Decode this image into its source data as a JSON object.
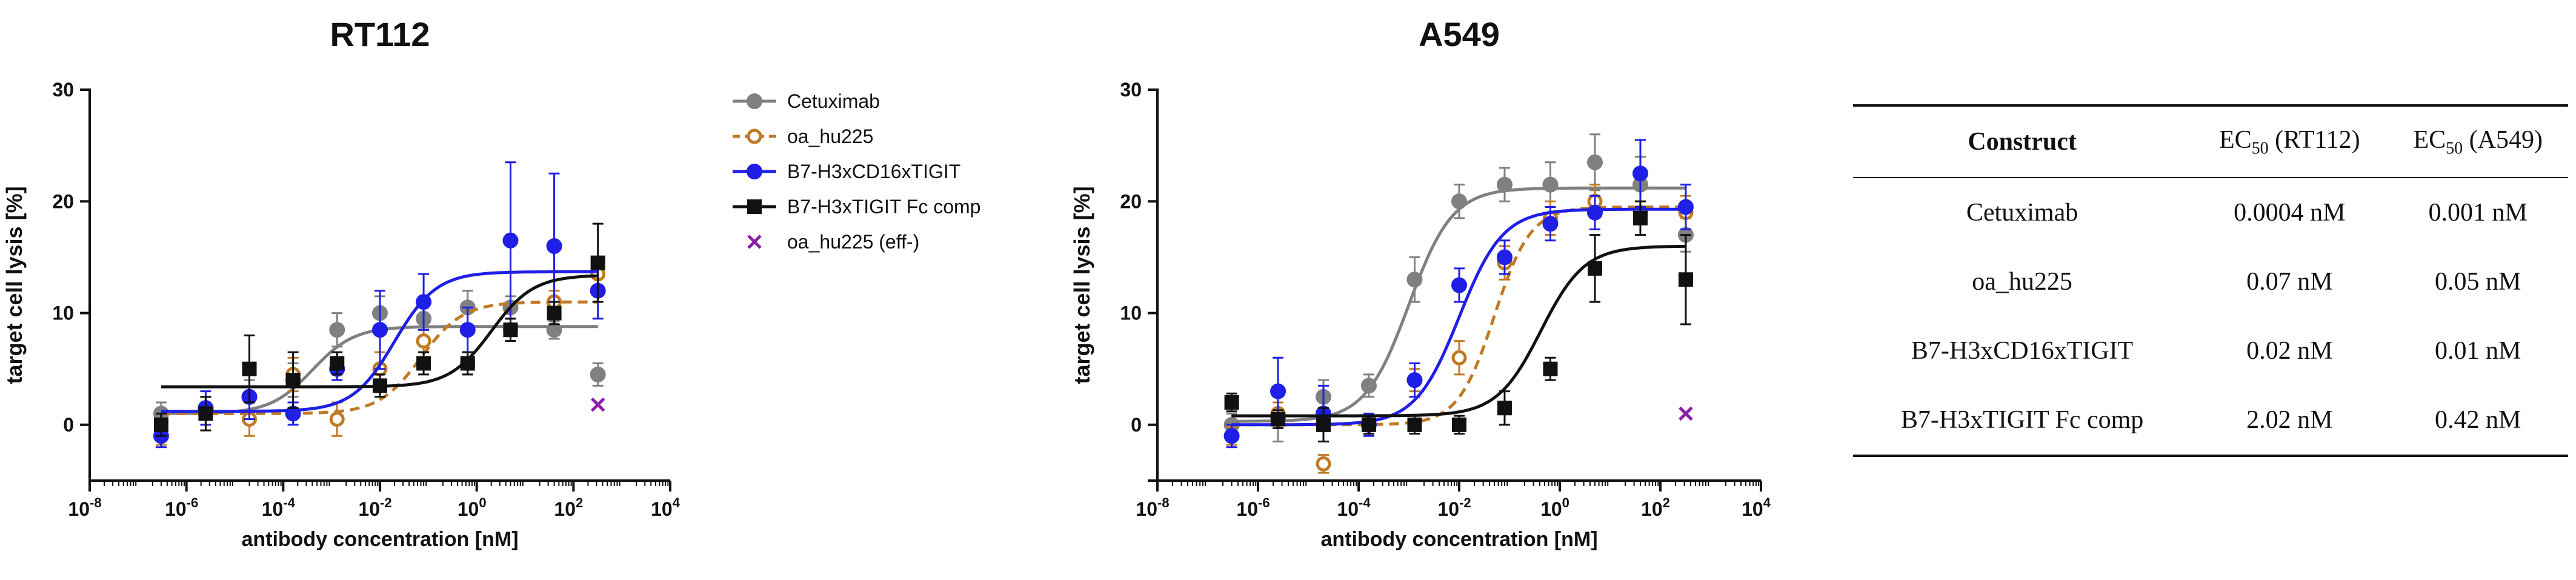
{
  "series_styles": [
    {
      "key": "cetuximab",
      "name": "Cetuximab",
      "color": "#808080",
      "marker": "circle",
      "fill": true,
      "dashed": false
    },
    {
      "key": "oa_hu225",
      "name": "oa_hu225",
      "color": "#c07a24",
      "marker": "circle",
      "fill": false,
      "dashed": true
    },
    {
      "key": "b7h3cd16",
      "name": "B7-H3xCD16xTIGIT",
      "color": "#1f1fe6",
      "marker": "circle",
      "fill": true,
      "dashed": false
    },
    {
      "key": "b7h3tigit",
      "name": "B7-H3xTIGIT Fc comp",
      "color": "#111111",
      "marker": "square",
      "fill": true,
      "dashed": false
    },
    {
      "key": "oa_eff",
      "name": "oa_hu225 (eff-)",
      "color": "#8b1fa8",
      "marker": "cross",
      "fill": false,
      "dashed": false
    }
  ],
  "chart_data": [
    {
      "type": "scatter",
      "title": "RT112",
      "xlabel": "antibody concentration [nM]",
      "ylabel": "target cell lysis [%]",
      "xscale": "log",
      "xlim": [
        1e-08,
        10000
      ],
      "ylim": [
        -5,
        30
      ],
      "xticks": [
        1e-08,
        1e-06,
        0.0001,
        0.01,
        1,
        100,
        10000
      ],
      "xtick_labels": [
        [
          "10",
          "-8"
        ],
        [
          "10",
          "-6"
        ],
        [
          "10",
          "-4"
        ],
        [
          "10",
          "-2"
        ],
        [
          "10",
          "0"
        ],
        [
          "10",
          "2"
        ],
        [
          "10",
          "4"
        ]
      ],
      "yticks": [
        0,
        10,
        20,
        30
      ],
      "ytick_labels": [
        "0",
        "10",
        "20",
        "30"
      ],
      "legend": "right",
      "x": [
        3e-07,
        2.5e-06,
        2e-05,
        0.00016,
        0.0013,
        0.01,
        0.08,
        0.65,
        5,
        40,
        320
      ],
      "series": [
        {
          "name": "Cetuximab",
          "y": [
            1.0,
            1.5,
            2.5,
            4.0,
            8.5,
            10.0,
            9.5,
            10.5,
            10.5,
            8.5,
            4.5
          ],
          "err": [
            1.0,
            1.0,
            1.5,
            1.5,
            1.5,
            1.5,
            1.0,
            1.5,
            1.0,
            0.8,
            1.0
          ],
          "fit": {
            "bottom": 1.0,
            "top": 8.8,
            "ec50": 0.0004,
            "hill": 1.0
          }
        },
        {
          "name": "oa_hu225",
          "y": [
            -1.0,
            1.0,
            0.5,
            4.5,
            0.5,
            5.0,
            7.5,
            5.5,
            8.5,
            11.0,
            13.5
          ],
          "err": [
            0.8,
            1.5,
            1.5,
            1.5,
            1.5,
            1.5,
            1.0,
            1.0,
            1.0,
            1.0,
            1.5
          ],
          "fit": {
            "bottom": 1.0,
            "top": 11.0,
            "ec50": 0.07,
            "hill": 1.0
          }
        },
        {
          "name": "B7-H3xCD16xTIGIT",
          "y": [
            -1.0,
            1.5,
            2.5,
            1.0,
            5.0,
            8.5,
            11.0,
            8.5,
            16.5,
            16.0,
            12.0
          ],
          "err": [
            1.0,
            1.5,
            2.0,
            1.0,
            1.0,
            3.5,
            2.5,
            2.0,
            7.0,
            6.5,
            2.5
          ],
          "fit": {
            "bottom": 1.2,
            "top": 13.7,
            "ec50": 0.02,
            "hill": 1.0
          }
        },
        {
          "name": "B7-H3xTIGIT Fc comp",
          "y": [
            0.0,
            1.0,
            5.0,
            4.0,
            5.5,
            3.5,
            5.5,
            5.5,
            8.5,
            10.0,
            14.5
          ],
          "err": [
            1.0,
            1.5,
            3.0,
            2.5,
            1.0,
            1.0,
            1.0,
            1.0,
            1.0,
            1.0,
            3.5
          ],
          "fit": {
            "bottom": 3.4,
            "top": 13.4,
            "ec50": 2.02,
            "hill": 1.0
          }
        },
        {
          "name": "oa_hu225 (eff-)",
          "points": [
            {
              "x": 320,
              "y": 1.8
            }
          ]
        }
      ]
    },
    {
      "type": "scatter",
      "title": "A549",
      "xlabel": "antibody concentration [nM]",
      "ylabel": "target cell lysis [%]",
      "xscale": "log",
      "xlim": [
        1e-08,
        10000
      ],
      "ylim": [
        -5,
        30
      ],
      "xticks": [
        1e-08,
        1e-06,
        0.0001,
        0.01,
        1,
        100,
        10000
      ],
      "xtick_labels": [
        [
          "10",
          "-8"
        ],
        [
          "10",
          "-6"
        ],
        [
          "10",
          "-4"
        ],
        [
          "10",
          "-2"
        ],
        [
          "10",
          "0"
        ],
        [
          "10",
          "2"
        ],
        [
          "10",
          "4"
        ]
      ],
      "yticks": [
        -5,
        0,
        10,
        20,
        30
      ],
      "ytick_labels": [
        "",
        "0",
        "10",
        "20",
        "30"
      ],
      "legend": "none",
      "x": [
        3e-07,
        2.5e-06,
        2e-05,
        0.00016,
        0.0013,
        0.01,
        0.08,
        0.65,
        5,
        40,
        320
      ],
      "series": [
        {
          "name": "Cetuximab",
          "y": [
            0.0,
            0.5,
            2.5,
            3.5,
            13.0,
            20.0,
            21.5,
            21.5,
            23.5,
            21.5,
            17.0
          ],
          "err": [
            1.0,
            2.0,
            1.5,
            1.0,
            2.0,
            1.5,
            1.5,
            2.0,
            2.5,
            2.5,
            1.5
          ],
          "fit": {
            "bottom": 0.3,
            "top": 21.2,
            "ec50": 0.001,
            "hill": 1.0
          }
        },
        {
          "name": "oa_hu225",
          "y": [
            -1.0,
            1.0,
            -3.5,
            0.0,
            4.0,
            6.0,
            14.5,
            18.5,
            20.0,
            19.0,
            19.0
          ],
          "err": [
            0.8,
            1.0,
            0.8,
            0.8,
            1.0,
            1.5,
            1.5,
            1.5,
            1.5,
            1.0,
            1.5
          ],
          "fit": {
            "bottom": 0.0,
            "top": 19.5,
            "ec50": 0.05,
            "hill": 1.2
          }
        },
        {
          "name": "B7-H3xCD16xTIGIT",
          "y": [
            -1.0,
            3.0,
            1.0,
            0.0,
            4.0,
            12.5,
            15.0,
            18.0,
            19.0,
            22.5,
            19.5
          ],
          "err": [
            1.0,
            3.0,
            2.5,
            1.0,
            1.5,
            1.5,
            1.5,
            1.5,
            1.5,
            3.0,
            2.0
          ],
          "fit": {
            "bottom": 0.0,
            "top": 19.3,
            "ec50": 0.01,
            "hill": 1.0
          }
        },
        {
          "name": "B7-H3xTIGIT Fc comp",
          "y": [
            2.0,
            0.5,
            0.0,
            0.0,
            0.0,
            0.0,
            1.5,
            5.0,
            14.0,
            18.5,
            13.0
          ],
          "err": [
            0.8,
            0.8,
            1.5,
            0.8,
            0.8,
            0.8,
            1.5,
            1.0,
            3.0,
            1.5,
            4.0
          ],
          "fit": {
            "bottom": 0.8,
            "top": 16.0,
            "ec50": 0.42,
            "hill": 1.0
          }
        },
        {
          "name": "oa_hu225 (eff-)",
          "points": [
            {
              "x": 320,
              "y": 1.0
            }
          ]
        }
      ]
    }
  ],
  "table": {
    "header": {
      "construct": "Construct",
      "ec_rt112_prefix": "EC",
      "ec_rt112_sub": "50",
      "ec_rt112_suffix": " (RT112)",
      "ec_a549_prefix": "EC",
      "ec_a549_sub": "50",
      "ec_a549_suffix": " (A549)"
    },
    "rows": [
      {
        "construct": "Cetuximab",
        "rt112": "0.0004 nM",
        "a549": "0.001 nM"
      },
      {
        "construct": "oa_hu225",
        "rt112": "0.07 nM",
        "a549": "0.05 nM"
      },
      {
        "construct": "B7-H3xCD16xTIGIT",
        "rt112": "0.02 nM",
        "a549": "0.01 nM"
      },
      {
        "construct": "B7-H3xTIGIT Fc comp",
        "rt112": "2.02 nM",
        "a549": "0.42 nM"
      }
    ]
  }
}
